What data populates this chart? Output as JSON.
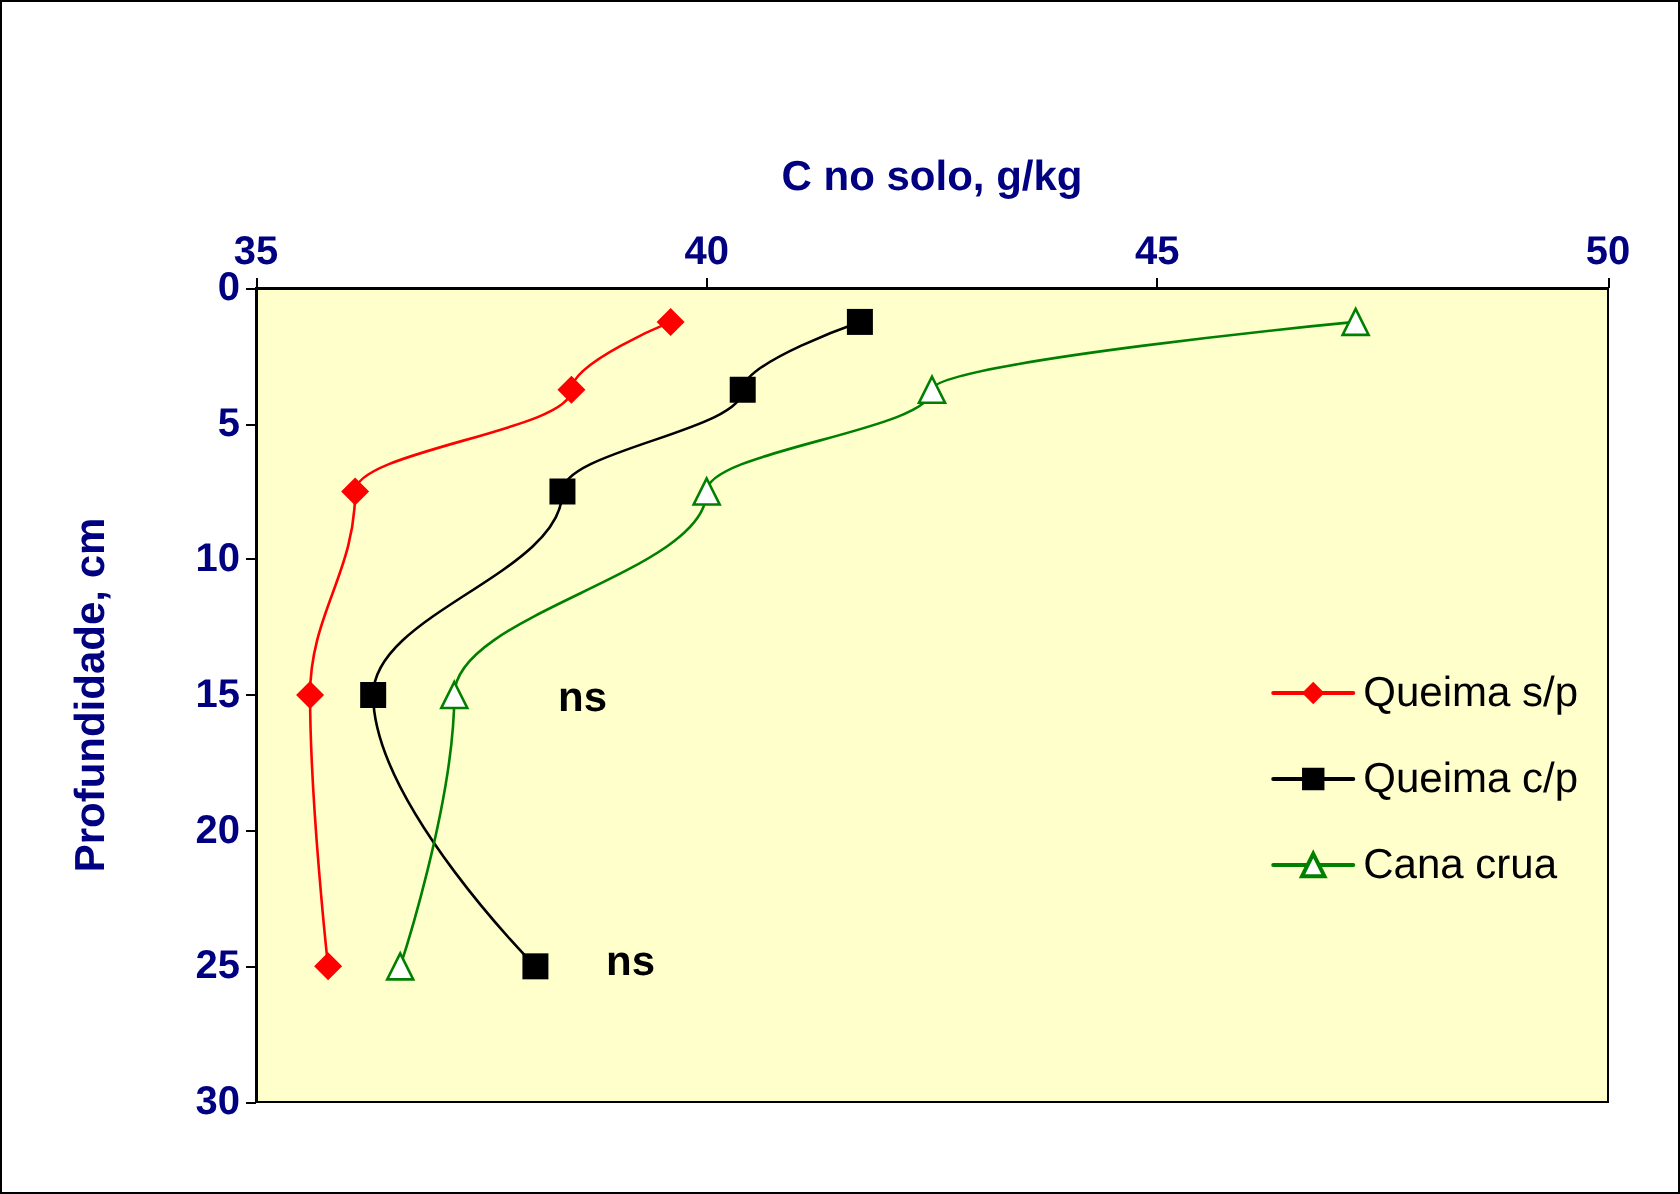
{
  "chart_data": {
    "type": "line",
    "xlabel": "C no solo, g/kg",
    "ylabel": "Profundidade, cm",
    "xlim": [
      35,
      50
    ],
    "xticks": [
      35,
      40,
      45,
      50
    ],
    "ylim": [
      30,
      0
    ],
    "yticks": [
      0,
      5,
      10,
      15,
      20,
      25,
      30
    ],
    "grid": false,
    "legend": "right",
    "series": [
      {
        "name": "Queima s/p",
        "color": "#ff0000",
        "marker": "diamond",
        "x": [
          39.6,
          38.5,
          36.1,
          35.6,
          35.8
        ],
        "values": [
          1.25,
          3.75,
          7.5,
          15,
          25
        ]
      },
      {
        "name": "Queima c/p",
        "color": "#000000",
        "marker": "square",
        "x": [
          41.7,
          40.4,
          38.4,
          36.3,
          38.1
        ],
        "values": [
          1.25,
          3.75,
          7.5,
          15,
          25
        ]
      },
      {
        "name": "Cana crua",
        "color": "#008000",
        "marker": "triangle",
        "x": [
          47.2,
          42.5,
          40.0,
          37.2,
          36.6
        ],
        "values": [
          1.25,
          3.75,
          7.5,
          15,
          25
        ]
      }
    ],
    "annotations": [
      "ns",
      "ns"
    ]
  }
}
